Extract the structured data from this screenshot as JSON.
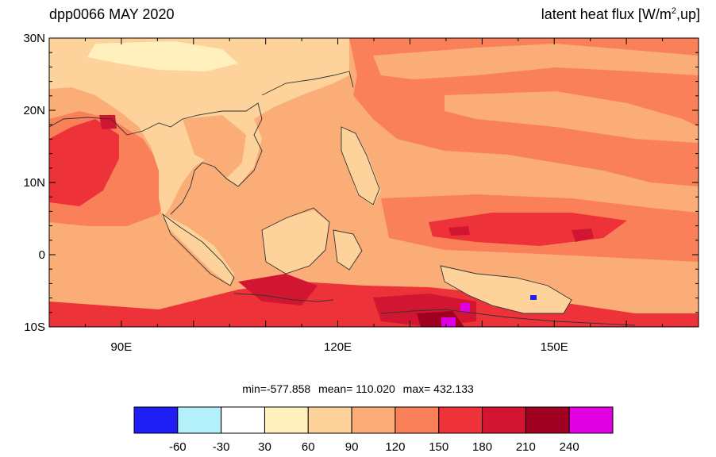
{
  "title_left": "dpp0066 MAY 2020",
  "title_right_main": "latent heat flux [W/m",
  "title_right_sup": "2",
  "title_right_end": ",up]",
  "lat_labels": [
    "30N",
    "20N",
    "10N",
    "0",
    "10S"
  ],
  "lon_labels": [
    "90E",
    "120E",
    "150E"
  ],
  "stats": {
    "min": "min=-577.858",
    "mean": "mean= 110.020",
    "max": "max= 432.133"
  },
  "colorbar": {
    "colors": [
      "#1e1ef5",
      "#b4f0fa",
      "#ffffff",
      "#fff0be",
      "#fdd39b",
      "#fbad78",
      "#f98058",
      "#ee3239",
      "#d21631",
      "#a00022",
      "#e100e1"
    ],
    "labels": [
      "-60",
      "-30",
      "30",
      "60",
      "90",
      "120",
      "150",
      "180",
      "210",
      "240"
    ]
  },
  "map_colors": {
    "level_90_120": "#fbad78",
    "level_120_150": "#f98058",
    "level_150_180": "#ee3239",
    "level_180_210": "#d21631",
    "level_210_240": "#a00022",
    "above_240": "#e100e1",
    "level_60_90": "#fdd39b",
    "level_30_60": "#fff0be",
    "below_neg60": "#1e1ef5"
  }
}
